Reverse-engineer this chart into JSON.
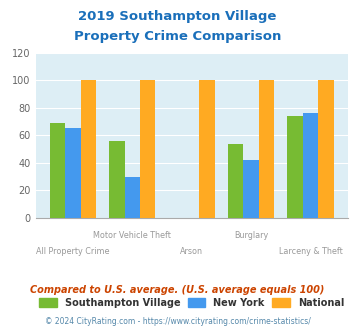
{
  "title_line1": "2019 Southampton Village",
  "title_line2": "Property Crime Comparison",
  "title_color": "#1a6fba",
  "categories": [
    "All Property Crime",
    "Motor Vehicle Theft",
    "Arson",
    "Burglary",
    "Larceny & Theft"
  ],
  "southampton_values": [
    69,
    56,
    0,
    54,
    74
  ],
  "newyork_values": [
    65,
    30,
    0,
    42,
    76
  ],
  "national_values": [
    100,
    100,
    100,
    100,
    100
  ],
  "southampton_color": "#77bb33",
  "newyork_color": "#4499ee",
  "national_color": "#ffaa22",
  "bg_color": "#ddeef5",
  "ylim": [
    0,
    120
  ],
  "yticks": [
    0,
    20,
    40,
    60,
    80,
    100,
    120
  ],
  "legend_labels": [
    "Southampton Village",
    "New York",
    "National"
  ],
  "footnote1": "Compared to U.S. average. (U.S. average equals 100)",
  "footnote2": "© 2024 CityRating.com - https://www.cityrating.com/crime-statistics/",
  "footnote1_color": "#cc4400",
  "footnote2_color": "#5588aa",
  "label_color": "#999999",
  "label_top": [
    "",
    "Motor Vehicle Theft",
    "",
    "Burglary",
    ""
  ],
  "label_bottom": [
    "All Property Crime",
    "",
    "Arson",
    "",
    "Larceny & Theft"
  ]
}
